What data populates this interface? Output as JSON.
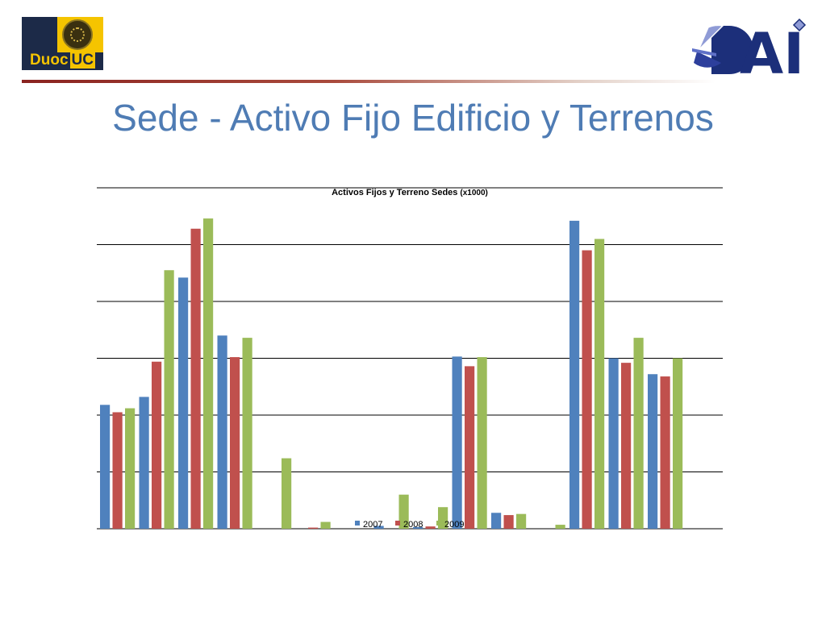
{
  "header": {
    "left_logo": {
      "icon": "duoc-uc-seal-icon",
      "text_part1": "Duoc",
      "text_part2": "UC",
      "colors": {
        "navy": "#1c2a48",
        "gold": "#f5c400"
      }
    },
    "right_logo": {
      "icon": "dai-logo-icon",
      "text": "AI",
      "colors": {
        "navy": "#1c2f7a",
        "pie": "#8f9bd6"
      }
    }
  },
  "page": {
    "title": "Sede - Activo Fijo Edificio y Terrenos"
  },
  "chart_data": {
    "type": "bar",
    "title": "Activos Fijos y Terreno Sedes",
    "title_suffix": "(x1000)",
    "categories": [
      "",
      "",
      "",
      "",
      "",
      "",
      "",
      "",
      "",
      "",
      "",
      "",
      "",
      "",
      "",
      ""
    ],
    "series": [
      {
        "name": "2007",
        "color": "#4f81bd",
        "values": [
          2.18,
          2.32,
          4.42,
          3.4,
          0,
          0,
          0,
          0.05,
          0.03,
          3.03,
          0.28,
          0,
          5.42,
          3.0,
          2.72,
          0
        ]
      },
      {
        "name": "2008",
        "color": "#c0504d",
        "values": [
          2.05,
          2.94,
          5.28,
          3.02,
          0,
          0.02,
          0,
          0,
          0.04,
          2.86,
          0.24,
          0,
          4.9,
          2.92,
          2.68,
          0
        ]
      },
      {
        "name": "2009",
        "color": "#9bbb59",
        "values": [
          2.12,
          4.55,
          5.46,
          3.36,
          1.24,
          0.12,
          0,
          0.6,
          0.38,
          3.02,
          0.26,
          0.07,
          5.1,
          3.36,
          3.0,
          0
        ]
      }
    ],
    "ylim": [
      0,
      6
    ],
    "gridlines": true,
    "legend_position": "bottom"
  }
}
